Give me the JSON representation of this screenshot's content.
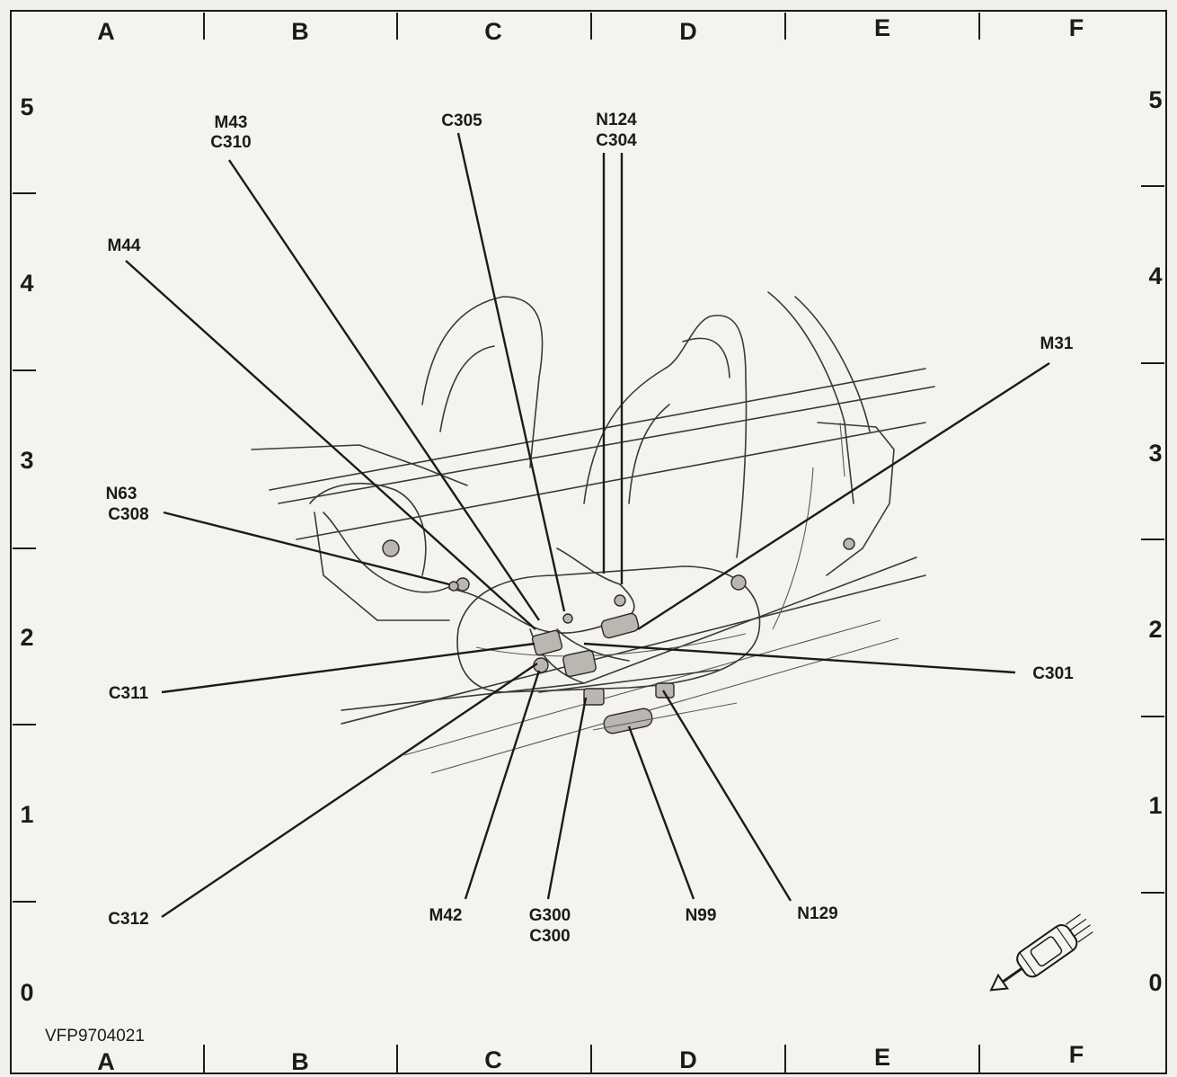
{
  "grid": {
    "columns": [
      "A",
      "B",
      "C",
      "D",
      "E",
      "F"
    ],
    "rows": [
      "5",
      "4",
      "3",
      "2",
      "1",
      "0"
    ]
  },
  "figure_id": "VFP9704021",
  "callouts": [
    {
      "id": "m43-c310",
      "lines": [
        "M43",
        "C310"
      ]
    },
    {
      "id": "c305",
      "lines": [
        "C305"
      ]
    },
    {
      "id": "n124-c304",
      "lines": [
        "N124",
        "C304"
      ]
    },
    {
      "id": "m44",
      "lines": [
        "M44"
      ]
    },
    {
      "id": "m31",
      "lines": [
        "M31"
      ]
    },
    {
      "id": "n63-c308",
      "lines": [
        "N63",
        "C308"
      ]
    },
    {
      "id": "c311",
      "lines": [
        "C311"
      ]
    },
    {
      "id": "c301",
      "lines": [
        "C301"
      ]
    },
    {
      "id": "c312",
      "lines": [
        "C312"
      ]
    },
    {
      "id": "m42",
      "lines": [
        "M42"
      ]
    },
    {
      "id": "g300-c300",
      "lines": [
        "G300",
        "C300"
      ]
    },
    {
      "id": "n99",
      "lines": [
        "N99"
      ]
    },
    {
      "id": "n129",
      "lines": [
        "N129"
      ]
    }
  ],
  "icons": {
    "vehicle_orientation": "car-direction-arrow-icon"
  }
}
